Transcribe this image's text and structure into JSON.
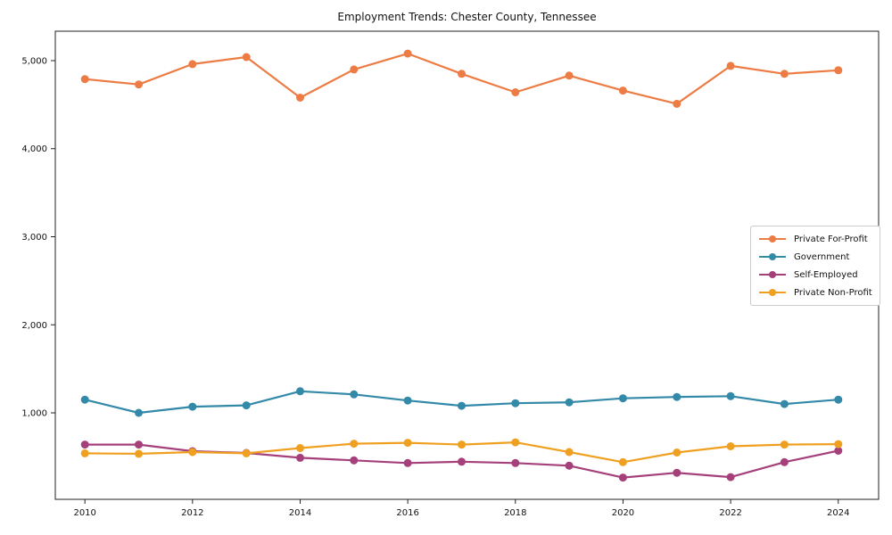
{
  "figure": {
    "title": "Employment Trends: Chester County, Tennessee"
  },
  "chart_data": {
    "type": "line",
    "title": "Employment Trends: Chester County, Tennessee",
    "xlabel": "",
    "ylabel": "",
    "grid": false,
    "legend_position": "center-right",
    "xlim": [
      2009.45,
      2024.75
    ],
    "ylim": [
      18,
      5334
    ],
    "x": [
      2010,
      2011,
      2012,
      2013,
      2014,
      2015,
      2016,
      2017,
      2018,
      2019,
      2020,
      2021,
      2022,
      2023,
      2024
    ],
    "xticks": [
      {
        "v": 2010,
        "label": "2010"
      },
      {
        "v": 2012,
        "label": "2012"
      },
      {
        "v": 2014,
        "label": "2014"
      },
      {
        "v": 2016,
        "label": "2016"
      },
      {
        "v": 2018,
        "label": "2018"
      },
      {
        "v": 2020,
        "label": "2020"
      },
      {
        "v": 2022,
        "label": "2022"
      },
      {
        "v": 2024,
        "label": "2024"
      }
    ],
    "yticks": [
      {
        "v": 1000,
        "label": "1,000"
      },
      {
        "v": 2000,
        "label": "2,000"
      },
      {
        "v": 3000,
        "label": "3,000"
      },
      {
        "v": 4000,
        "label": "4,000"
      },
      {
        "v": 5000,
        "label": "5,000"
      }
    ],
    "series": [
      {
        "name": "Private For-Profit",
        "color": "#EC7C44",
        "values": [
          4790,
          4730,
          4960,
          5040,
          4580,
          4900,
          5080,
          4850,
          4640,
          4830,
          4660,
          4510,
          4940,
          4850,
          4890
        ]
      },
      {
        "name": "Government",
        "color": "#3289A8",
        "values": [
          1150,
          1000,
          1070,
          1085,
          1245,
          1210,
          1140,
          1080,
          1110,
          1120,
          1165,
          1180,
          1190,
          1100,
          1150
        ]
      },
      {
        "name": "Self-Employed",
        "color": "#A5407B",
        "values": [
          640,
          640,
          565,
          545,
          490,
          460,
          430,
          445,
          430,
          400,
          265,
          320,
          270,
          440,
          570
        ]
      },
      {
        "name": "Private Non-Profit",
        "color": "#F0A020",
        "values": [
          540,
          535,
          555,
          540,
          600,
          650,
          660,
          640,
          665,
          555,
          440,
          550,
          620,
          640,
          645
        ]
      }
    ],
    "style": {
      "spine_color": "#222222",
      "tick_color": "#222222",
      "text_color": "#111111",
      "line_width": 2.2,
      "marker_radius": 4.5
    }
  }
}
